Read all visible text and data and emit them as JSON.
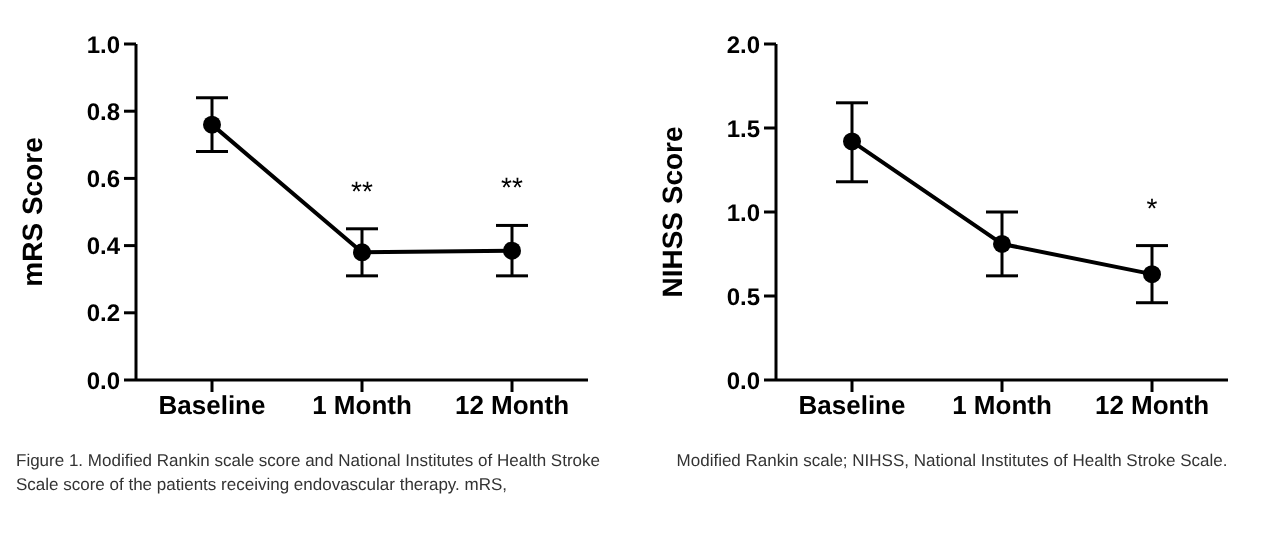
{
  "chart_data": [
    {
      "type": "line",
      "ylabel": "mRS Score",
      "categories": [
        "Baseline",
        "1 Month",
        "12 Month"
      ],
      "marker": "circle",
      "series": [
        {
          "color": "#000000",
          "values": [
            0.76,
            0.38,
            0.385
          ],
          "errors": [
            [
              0.68,
              0.84
            ],
            [
              0.31,
              0.45
            ],
            [
              0.31,
              0.46
            ]
          ]
        }
      ],
      "ylim": [
        0,
        1.0
      ],
      "yticks": [
        {
          "value": 0,
          "label": "0.0"
        },
        {
          "value": 0.2,
          "label": "0.2"
        },
        {
          "value": 0.4,
          "label": "0.4"
        },
        {
          "value": 0.6,
          "label": "0.6"
        },
        {
          "value": 0.8,
          "label": "0.8"
        },
        {
          "value": 1.0,
          "label": "1.0"
        }
      ],
      "annotations": [
        {
          "text": "**",
          "x": "1 Month",
          "y": 0.38
        },
        {
          "text": "**",
          "x": "12 Month",
          "y": 0.385
        },
        "Figure 1. Modified Rankin scale score and National Institutes of Health Stroke Scale score of the patients receiving endovascular therapy. mRS,"
      ]
    },
    {
      "type": "line",
      "ylabel": "NIHSS Score",
      "categories": [
        "Baseline",
        "1 Month",
        "12 Month"
      ],
      "marker": "circle",
      "series": [
        {
          "color": "#000000",
          "values": [
            1.42,
            0.81,
            0.63
          ],
          "errors": [
            [
              1.18,
              1.65
            ],
            [
              0.62,
              1.0
            ],
            [
              0.46,
              0.8
            ]
          ]
        }
      ],
      "ylim": [
        0,
        2.0
      ],
      "yticks": [
        {
          "value": 0,
          "label": "0.0"
        },
        {
          "value": 0.5,
          "label": "0.5"
        },
        {
          "value": 1.0,
          "label": "1.0"
        },
        {
          "value": 1.5,
          "label": "1.5"
        },
        {
          "value": 2.0,
          "label": "2.0"
        }
      ],
      "annotations": [
        {
          "text": "*",
          "x": "12 Month",
          "y": 0.63
        },
        "Modified Rankin scale; NIHSS, National Institutes of Health Stroke Scale."
      ]
    }
  ]
}
